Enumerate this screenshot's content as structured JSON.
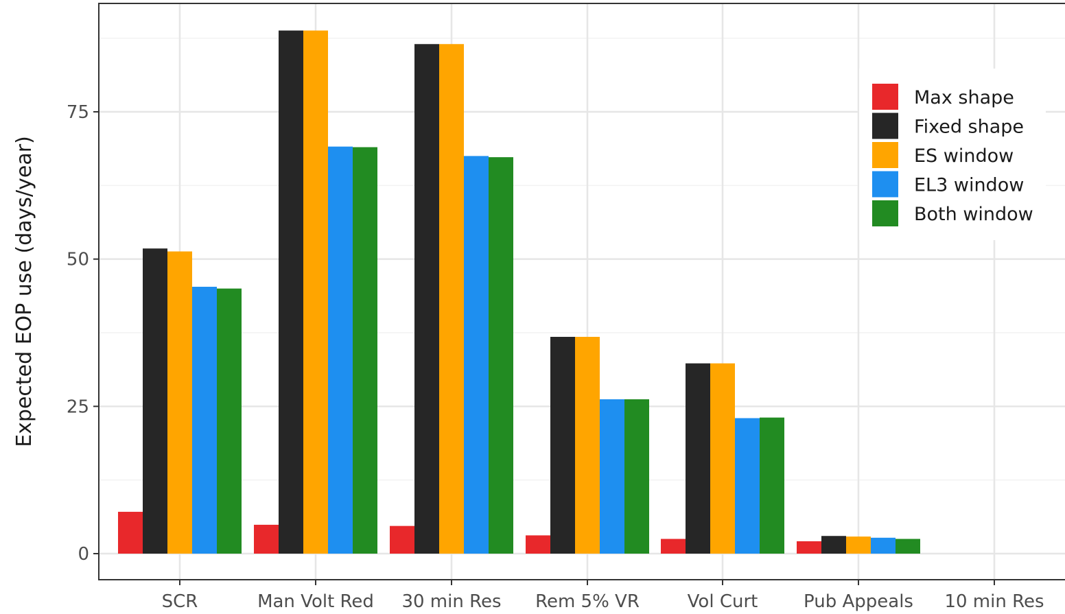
{
  "chart_data": {
    "type": "bar",
    "title": "",
    "xlabel": "",
    "ylabel": "Expected EOP use (days/year)",
    "ylim": [
      0,
      93
    ],
    "yticks": [
      0,
      25,
      50,
      75
    ],
    "grid": true,
    "legend_position": "top-right",
    "categories": [
      "SCR",
      "Man Volt Red",
      "30 min Res",
      "Rem 5% VR",
      "Vol Curt",
      "Pub Appeals",
      "10 min Res"
    ],
    "series": [
      {
        "name": "Max shape",
        "color": "#e8282b",
        "values": [
          7.1,
          4.9,
          4.7,
          3.1,
          2.5,
          2.1,
          0
        ]
      },
      {
        "name": "Fixed shape",
        "color": "#262626",
        "values": [
          51.8,
          88.8,
          86.5,
          36.8,
          32.3,
          3.0,
          0
        ]
      },
      {
        "name": "ES window",
        "color": "#ffa500",
        "values": [
          51.3,
          88.8,
          86.5,
          36.8,
          32.3,
          2.9,
          0
        ]
      },
      {
        "name": "EL3 window",
        "color": "#1e8ff0",
        "values": [
          45.3,
          69.1,
          67.5,
          26.2,
          23.0,
          2.7,
          0
        ]
      },
      {
        "name": "Both window",
        "color": "#228b22",
        "values": [
          45.0,
          69.0,
          67.3,
          26.2,
          23.1,
          2.5,
          0
        ]
      }
    ]
  }
}
